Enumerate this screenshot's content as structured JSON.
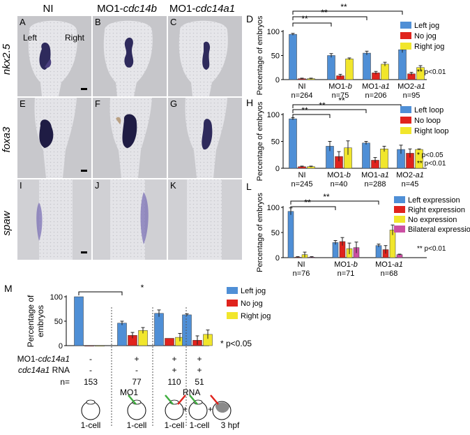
{
  "columns": [
    "NI",
    "MO1-",
    "cdc14b",
    "MO1-",
    "cdc14a1"
  ],
  "rows": [
    "nkx2.5",
    "foxa3",
    "spaw"
  ],
  "panel_letters": [
    "A",
    "B",
    "C",
    "D",
    "E",
    "F",
    "G",
    "H",
    "I",
    "J",
    "K",
    "L",
    "M"
  ],
  "side_labels": {
    "left": "Left",
    "right": "Right"
  },
  "colors": {
    "left": "#4f8fd6",
    "none": "#e0231d",
    "right": "#f1e62c",
    "bilateral": "#cc4fa3"
  },
  "chart_data": [
    {
      "type": "bar",
      "panel": "D",
      "ylabel": "Percentage of embryos",
      "ylim": [
        0,
        100
      ],
      "yticks": [
        0,
        50,
        100
      ],
      "categories": [
        "NI",
        "MO1-b",
        "MO1-a1",
        "MO2-a1"
      ],
      "n_labels": [
        "n=264",
        "n=75",
        "n=206",
        "n=95"
      ],
      "series": [
        {
          "name": "Left jog",
          "values": [
            94,
            50,
            55,
            62
          ],
          "errors": [
            2,
            4,
            4,
            6
          ]
        },
        {
          "name": "No jog",
          "values": [
            2,
            8,
            14,
            12
          ],
          "errors": [
            1,
            3,
            3,
            3
          ]
        },
        {
          "name": "Right jog",
          "values": [
            2,
            43,
            32,
            25
          ],
          "errors": [
            1,
            2,
            4,
            4
          ]
        }
      ],
      "significance": [
        "**",
        "**",
        "**"
      ],
      "legend_position": "top-right",
      "note": "** p<0.01"
    },
    {
      "type": "bar",
      "panel": "H",
      "ylabel": "Percentage of embryos",
      "ylim": [
        0,
        100
      ],
      "yticks": [
        0,
        50,
        100
      ],
      "categories": [
        "NI",
        "MO1-b",
        "MO1-a1",
        "MO2-a1"
      ],
      "n_labels": [
        "n=245",
        "n=40",
        "n=288",
        "n=45"
      ],
      "series": [
        {
          "name": "Left loop",
          "values": [
            92,
            41,
            47,
            35
          ],
          "errors": [
            2,
            9,
            3,
            8
          ]
        },
        {
          "name": "No loop",
          "values": [
            3,
            22,
            15,
            28
          ],
          "errors": [
            1,
            9,
            5,
            8
          ]
        },
        {
          "name": "Right loop",
          "values": [
            3,
            38,
            36,
            35
          ],
          "errors": [
            1,
            13,
            5,
            1
          ]
        }
      ],
      "significance": [
        "**",
        "**",
        "**"
      ],
      "legend_position": "top-right",
      "notes": [
        "* p<0.05",
        "** p<0.01"
      ]
    },
    {
      "type": "bar",
      "panel": "L",
      "ylabel": "Percentage of embryos",
      "ylim": [
        0,
        100
      ],
      "yticks": [
        0,
        50,
        100
      ],
      "categories": [
        "NI",
        "MO1-b",
        "MO1-a1"
      ],
      "n_labels": [
        "n=76",
        "n=71",
        "n=68"
      ],
      "series": [
        {
          "name": "Left expression",
          "values": [
            92,
            30,
            24
          ],
          "errors": [
            7,
            4,
            3
          ]
        },
        {
          "name": "Right expression",
          "values": [
            1,
            32,
            16
          ],
          "errors": [
            1,
            8,
            8
          ]
        },
        {
          "name": "No expression",
          "values": [
            6,
            18,
            55
          ],
          "errors": [
            5,
            11,
            10
          ]
        },
        {
          "name": "Bilateral expression",
          "values": [
            1,
            20,
            6
          ],
          "errors": [
            1,
            11,
            1
          ]
        }
      ],
      "significance": [
        "**",
        "**"
      ],
      "legend_position": "top-right",
      "note": "** p<0.01"
    },
    {
      "type": "bar",
      "panel": "M",
      "ylabel": "Percentage of embryos",
      "ylim": [
        0,
        100
      ],
      "yticks": [
        0,
        50,
        100
      ],
      "categories": [
        "153",
        "77",
        "110",
        "51"
      ],
      "series": [
        {
          "name": "Left jog",
          "values": [
            100,
            46,
            66,
            63
          ],
          "errors": [
            0,
            4,
            7,
            2
          ]
        },
        {
          "name": "No jog",
          "values": [
            0,
            21,
            15,
            11
          ],
          "errors": [
            0,
            6,
            0,
            9
          ]
        },
        {
          "name": "Right jog",
          "values": [
            0,
            31,
            17,
            23
          ],
          "errors": [
            0,
            6,
            8,
            9
          ]
        }
      ],
      "significance": [
        "*"
      ],
      "legend_position": "top-right",
      "note": "* p<0.05",
      "condition_labels": [
        "MO1-",
        "cdc14a1",
        "cdc14a1",
        " RNA",
        "n="
      ],
      "mo_row": [
        "-",
        "+",
        "+",
        "+"
      ],
      "rna_row": [
        "-",
        "-",
        "+",
        "+"
      ],
      "injection_labels": [
        "MO1",
        "RNA"
      ],
      "stage_labels": [
        "1-cell",
        "1-cell",
        "1-cell",
        "1-cell",
        "3 hpf"
      ]
    }
  ]
}
